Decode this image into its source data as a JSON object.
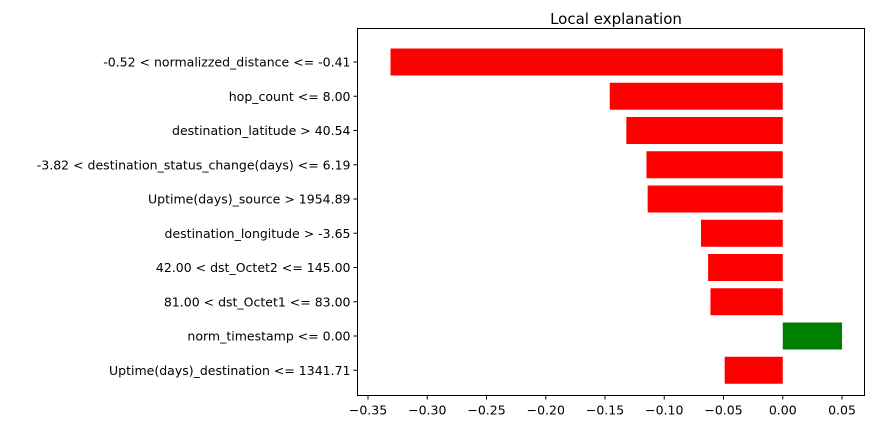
{
  "chart_data": {
    "type": "bar",
    "orientation": "horizontal",
    "title": "Local explanation",
    "xlabel": "",
    "ylabel": "",
    "xlim": [
      -0.35,
      0.05
    ],
    "grid": false,
    "legend": "none",
    "xticks": [
      -0.35,
      -0.3,
      -0.25,
      -0.2,
      -0.15,
      -0.1,
      -0.05,
      0.0,
      0.05
    ],
    "xtick_labels": [
      "−0.35",
      "−0.30",
      "−0.25",
      "−0.20",
      "−0.15",
      "−0.10",
      "−0.05",
      "0.00",
      "0.05"
    ],
    "categories": [
      "-0.52 < normalizzed_distance <= -0.41",
      "hop_count <= 8.00",
      "destination_latitude > 40.54",
      "-3.82 < destination_status_change(days) <= 6.19",
      "Uptime(days)_source > 1954.89",
      "destination_longitude > -3.65",
      "42.00 < dst_Octet2 <= 145.00",
      "81.00 < dst_Octet1 <= 83.00",
      "norm_timestamp <= 0.00",
      "Uptime(days)_destination <= 1341.71"
    ],
    "values": [
      -0.331,
      -0.146,
      -0.132,
      -0.115,
      -0.114,
      -0.069,
      -0.063,
      -0.061,
      0.05,
      -0.049
    ],
    "colors": {
      "negative": "#ff0000",
      "positive": "#008000"
    }
  }
}
